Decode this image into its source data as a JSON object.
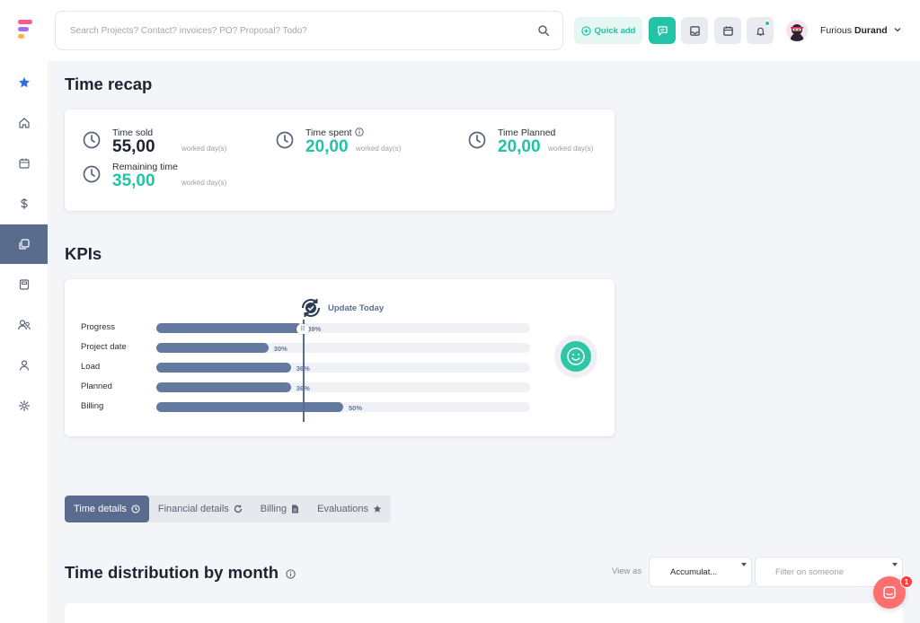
{
  "header": {
    "search_placeholder": "Search Projects? Contact? invoices? PO? Proposal? Todo?",
    "quick_add_label": "Quick add",
    "user_first": "Furious",
    "user_last": "Durand"
  },
  "colors": {
    "accent": "#22c3a6",
    "sidebar_active": "#5a6c8e",
    "bar_fill": "#64799f",
    "chat_bubble": "#ff6f6f"
  },
  "sidebar": {
    "items": [
      {
        "icon": "star-icon"
      },
      {
        "icon": "home-icon"
      },
      {
        "icon": "calendar-icon"
      },
      {
        "icon": "dollar-icon"
      },
      {
        "icon": "projects-icon",
        "active": true
      },
      {
        "icon": "document-icon"
      },
      {
        "icon": "users-icon"
      },
      {
        "icon": "user-icon"
      },
      {
        "icon": "settings-icon"
      }
    ]
  },
  "time_recap": {
    "title": "Time recap",
    "unit": "worked day(s)",
    "sold": {
      "label": "Time sold",
      "value": "55,00"
    },
    "spent": {
      "label": "Time spent",
      "value": "20,00"
    },
    "planned": {
      "label": "Time Planned",
      "value": "20,00"
    },
    "remaining": {
      "label": "Remaining time",
      "value": "35,00"
    }
  },
  "kpis": {
    "title": "KPIs",
    "update_label": "Update Today",
    "handle_label": "|||",
    "rows": [
      {
        "label": "Progress",
        "percent": 39,
        "pct_label": "39%"
      },
      {
        "label": "Project date",
        "percent": 30,
        "pct_label": "30%"
      },
      {
        "label": "Load",
        "percent": 36,
        "pct_label": "36%"
      },
      {
        "label": "Planned",
        "percent": 36,
        "pct_label": "36%"
      },
      {
        "label": "Billing",
        "percent": 50,
        "pct_label": "50%"
      }
    ],
    "today_percent": 39
  },
  "tabs": [
    {
      "label": "Time details",
      "icon": "clock-icon",
      "active": true
    },
    {
      "label": "Financial details",
      "icon": "refresh-icon",
      "active": false
    },
    {
      "label": "Billing",
      "icon": "file-icon",
      "active": false
    },
    {
      "label": "Evaluations",
      "icon": "star-icon",
      "active": false
    }
  ],
  "distribution": {
    "title": "Time distribution by month",
    "view_as_label": "View as",
    "view_as_value": "Accumulat...",
    "filter_placeholder": "Filter on someone"
  },
  "chat": {
    "badge": "1"
  }
}
